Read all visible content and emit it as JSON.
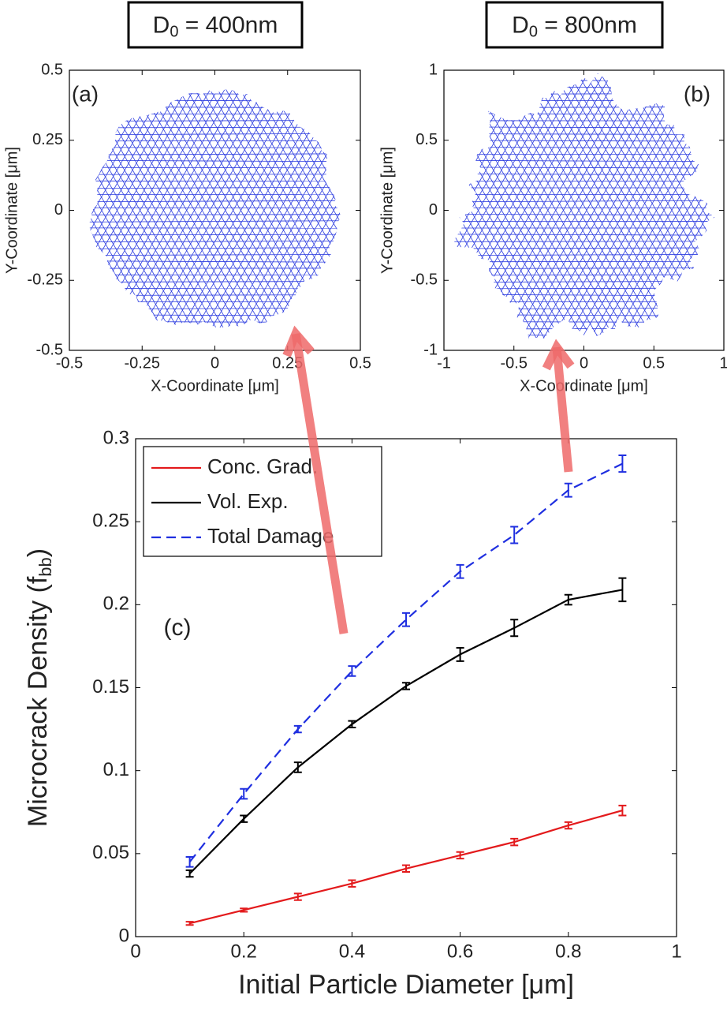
{
  "chart_data": [
    {
      "type": "mesh",
      "title_parts": [
        "D",
        "0",
        " = 400nm"
      ],
      "annotation": "(a)",
      "xlabel": "X-Coordinate [μm]",
      "ylabel": "Y-Coordinate [μm]",
      "xlim": [
        -0.5,
        0.5
      ],
      "ylim": [
        -0.5,
        0.5
      ],
      "xticks": [
        -0.5,
        -0.25,
        0,
        0.25,
        0.5
      ],
      "yticks": [
        -0.5,
        -0.25,
        0,
        0.25,
        0.5
      ],
      "color": "#2f3fe0"
    },
    {
      "type": "mesh",
      "title_parts": [
        "D",
        "0",
        " = 800nm"
      ],
      "annotation": "(b)",
      "xlabel": "X-Coordinate [μm]",
      "ylabel": "Y-Coordinate [μm]",
      "xlim": [
        -1,
        1
      ],
      "ylim": [
        -1,
        1
      ],
      "xticks": [
        -1,
        -0.5,
        0,
        0.5,
        1
      ],
      "yticks": [
        -1,
        -0.5,
        0,
        0.5,
        1
      ],
      "color": "#2f3fe0"
    },
    {
      "type": "line",
      "annotation": "(c)",
      "xlabel": "Initial Particle Diameter [μm]",
      "ylabel_parts": [
        "Microcrack Density (f",
        "bb",
        ")"
      ],
      "xlim": [
        0,
        1
      ],
      "ylim": [
        0,
        0.3
      ],
      "xticks": [
        0,
        0.2,
        0.4,
        0.6,
        0.8,
        1
      ],
      "yticks": [
        0,
        0.05,
        0.1,
        0.15,
        0.2,
        0.25,
        0.3
      ],
      "legend": "upper left",
      "x": [
        0.1,
        0.2,
        0.3,
        0.4,
        0.5,
        0.6,
        0.7,
        0.8,
        0.9
      ],
      "series": [
        {
          "name": "Conc. Grad.",
          "color": "#e31a1c",
          "linestyle": "solid",
          "values": [
            0.008,
            0.016,
            0.024,
            0.032,
            0.041,
            0.049,
            0.057,
            0.067,
            0.076
          ],
          "errors": [
            0.001,
            0.001,
            0.002,
            0.002,
            0.002,
            0.002,
            0.002,
            0.002,
            0.003
          ]
        },
        {
          "name": "Vol. Exp.",
          "color": "#000000",
          "linestyle": "solid",
          "values": [
            0.038,
            0.071,
            0.102,
            0.128,
            0.151,
            0.17,
            0.186,
            0.203,
            0.209
          ],
          "errors": [
            0.002,
            0.002,
            0.003,
            0.002,
            0.002,
            0.004,
            0.005,
            0.003,
            0.007
          ]
        },
        {
          "name": "Total Damage",
          "color": "#1f2fe0",
          "linestyle": "dashed",
          "values": [
            0.045,
            0.086,
            0.125,
            0.16,
            0.191,
            0.22,
            0.242,
            0.269,
            0.285
          ],
          "errors": [
            0.003,
            0.003,
            0.002,
            0.003,
            0.004,
            0.004,
            0.005,
            0.004,
            0.005
          ]
        }
      ]
    }
  ]
}
